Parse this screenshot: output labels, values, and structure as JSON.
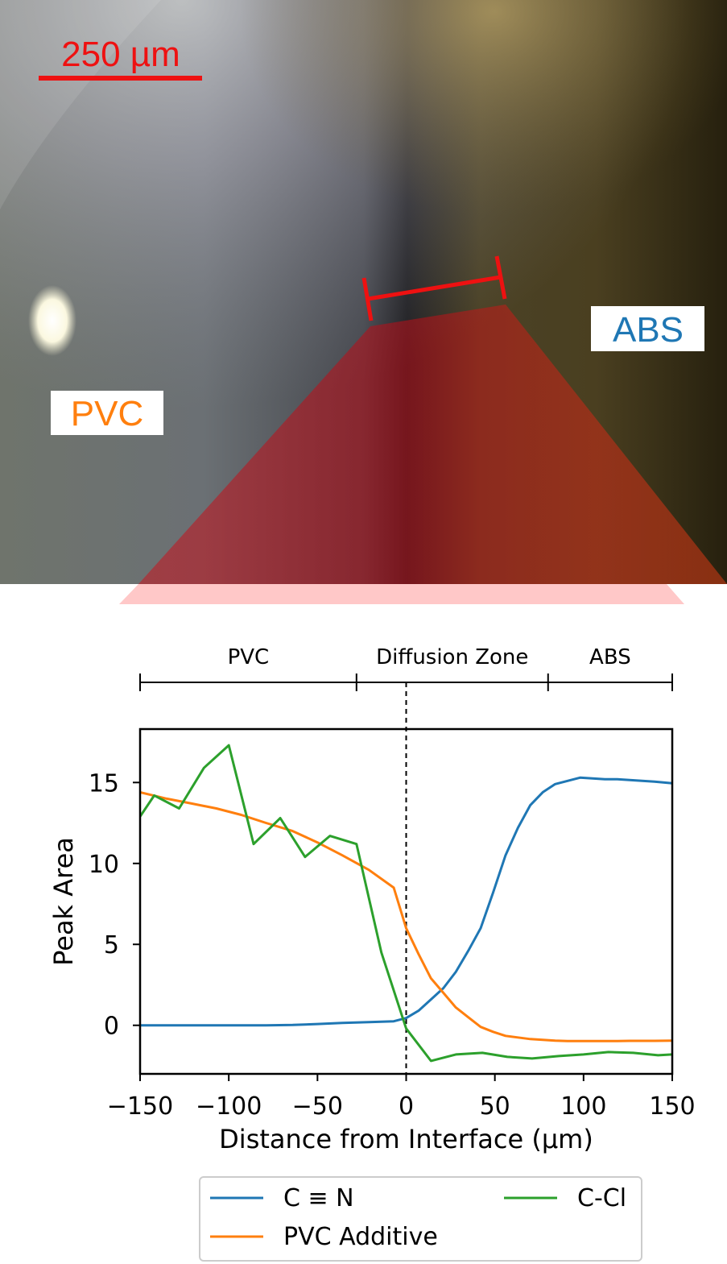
{
  "micrograph": {
    "scale_bar_label": "250 µm",
    "region_left_label": "PVC",
    "region_right_label": "ABS",
    "colors": {
      "scale": "#ee1111",
      "pvc_label": "#ff7f0e",
      "abs_label": "#1f77b4",
      "highlight": "#c0141e"
    }
  },
  "zones": {
    "labels": [
      "PVC",
      "Diffusion Zone",
      "ABS"
    ],
    "boundaries": [
      -150,
      -28,
      80,
      150
    ]
  },
  "chart_data": {
    "type": "line",
    "title": "",
    "xlabel": "Distance from Interface (µm)",
    "ylabel": "Peak Area",
    "xlim": [
      -150,
      150
    ],
    "ylim": [
      -3,
      18.3
    ],
    "xticks": [
      -150,
      -100,
      -50,
      0,
      50,
      100,
      150
    ],
    "xtick_labels": [
      "−150",
      "−100",
      "−50",
      "0",
      "50",
      "100",
      "150"
    ],
    "yticks": [
      0,
      5,
      10,
      15
    ],
    "ytick_labels": [
      "0",
      "5",
      "10",
      "15"
    ],
    "grid": false,
    "legend_position": "bottom-outside",
    "vline_x": 0,
    "series": [
      {
        "name": "C ≡ N",
        "color": "#1f77b4",
        "x": [
          -150,
          -135,
          -121,
          -107,
          -93,
          -79,
          -64,
          -50,
          -36,
          -21,
          -7,
          0,
          7,
          14,
          21,
          28,
          35,
          42,
          49,
          56,
          63,
          70,
          77,
          84,
          91,
          98,
          105,
          112,
          119,
          126,
          133,
          140,
          150
        ],
        "y": [
          0,
          0,
          0,
          0,
          0,
          0,
          0.02,
          0.08,
          0.15,
          0.2,
          0.25,
          0.45,
          0.9,
          1.6,
          2.3,
          3.3,
          4.6,
          6.0,
          8.2,
          10.5,
          12.2,
          13.6,
          14.4,
          14.9,
          15.1,
          15.3,
          15.25,
          15.2,
          15.2,
          15.15,
          15.1,
          15.05,
          14.95
        ]
      },
      {
        "name": "PVC Additive",
        "color": "#ff7f0e",
        "x": [
          -150,
          -135,
          -121,
          -107,
          -93,
          -79,
          -64,
          -50,
          -36,
          -21,
          -7,
          0,
          7,
          14,
          21,
          28,
          35,
          42,
          49,
          56,
          63,
          70,
          77,
          84,
          91,
          98,
          105,
          112,
          119,
          126,
          133,
          140,
          150
        ],
        "y": [
          14.4,
          14.0,
          13.7,
          13.4,
          13.0,
          12.5,
          12.0,
          11.3,
          10.5,
          9.6,
          8.5,
          6.0,
          4.4,
          2.9,
          2.0,
          1.1,
          0.5,
          -0.1,
          -0.4,
          -0.65,
          -0.75,
          -0.85,
          -0.9,
          -0.95,
          -0.97,
          -0.97,
          -0.97,
          -0.97,
          -0.97,
          -0.96,
          -0.96,
          -0.96,
          -0.95
        ]
      },
      {
        "name": "C-Cl",
        "color": "#2ca02c",
        "x": [
          -150,
          -142,
          -128,
          -114,
          -100,
          -86,
          -71,
          -57,
          -43,
          -28,
          -14,
          0,
          14,
          28,
          43,
          57,
          71,
          86,
          100,
          114,
          128,
          142,
          150
        ],
        "y": [
          12.9,
          14.2,
          13.4,
          15.9,
          17.3,
          11.2,
          12.8,
          10.4,
          11.7,
          11.2,
          4.5,
          -0.2,
          -2.2,
          -1.8,
          -1.7,
          -1.95,
          -2.05,
          -1.9,
          -1.8,
          -1.65,
          -1.7,
          -1.85,
          -1.8
        ]
      }
    ]
  }
}
